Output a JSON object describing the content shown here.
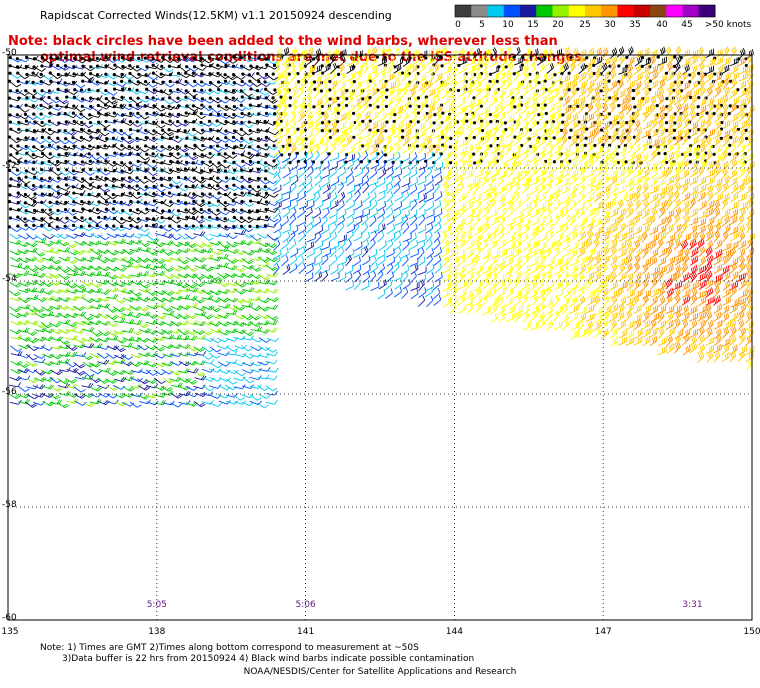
{
  "header": {
    "title": "Rapidscat Corrected Winds(12.5KM) v1.1 20150924 descending"
  },
  "note_red": {
    "line1": "Note: black circles have been added to the wind barbs, wherever less than",
    "line2": "optimal wind retrieval conditions are met due to the ISS attitude changes."
  },
  "legend": {
    "labels": [
      "0",
      "5",
      "10",
      "15",
      "20",
      "25",
      "30",
      "35",
      "40",
      "45",
      ">50 knots"
    ],
    "colors": [
      "#3c3c3c",
      "#8c8c8c",
      "#00c8f0",
      "#0050ff",
      "#1a1aa0",
      "#00c800",
      "#96f000",
      "#ffff00",
      "#ffc800",
      "#ff9600",
      "#ff0000",
      "#c80000",
      "#8b4513",
      "#ff00ff",
      "#a000c8",
      "#3c0078"
    ]
  },
  "map": {
    "lat_labels": [
      "-50",
      "-52",
      "-54",
      "-56",
      "-58",
      "-60"
    ],
    "lon_labels": [
      "135",
      "138",
      "141",
      "144",
      "147",
      "150"
    ],
    "time_labels": [
      {
        "text": "5:05",
        "lon": 138.0
      },
      {
        "text": "5:06",
        "lon": 141.0
      },
      {
        "text": "3:31",
        "lon": 148.8
      }
    ]
  },
  "footer": {
    "note_line1": "Note: 1) Times are GMT 2)Times along bottom correspond to measurement at ~50S",
    "note_line2": "3)Data buffer is 22 hrs from 20150924 4) Black wind barbs indicate possible contamination",
    "credit": "NOAA/NESDIS/Center for Satellite Applications and Research"
  },
  "colors": {
    "note": "#e00000",
    "time_labels": "#6a1a8a",
    "barb_calm": "#3c3c3c",
    "barb_light": "#0050ff",
    "barb_mid": "#00c800",
    "barb_strong": "#ffc800",
    "barb_gale": "#ff0000"
  }
}
